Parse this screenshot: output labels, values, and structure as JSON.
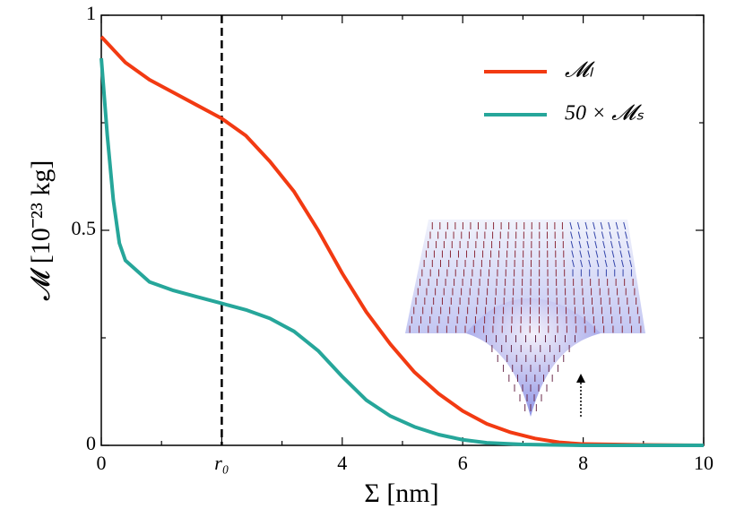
{
  "chart_data": {
    "type": "line",
    "xlabel": "Σ [nm]",
    "ylabel": "𝓜 [10⁻²³ kg]",
    "xlim": [
      0,
      10
    ],
    "ylim": [
      0,
      1
    ],
    "xticks": [
      0,
      {
        "value": 2,
        "label": "r₀"
      },
      4,
      6,
      8,
      10
    ],
    "xminorticks": [
      1,
      3,
      5,
      7,
      9
    ],
    "yticks": [
      0,
      0.5,
      1
    ],
    "yminorticks": [
      0.25,
      0.75
    ],
    "vline": {
      "x": 2,
      "color": "#000",
      "style": "dashed"
    },
    "legend": "upper right",
    "series": [
      {
        "name": "𝓜ₗ",
        "color": "#f23a12",
        "x": [
          0,
          0.4,
          0.8,
          1.2,
          1.6,
          2,
          2.4,
          2.8,
          3.2,
          3.6,
          4,
          4.4,
          4.8,
          5.2,
          5.6,
          6,
          6.4,
          6.8,
          7.2,
          7.6,
          8,
          9,
          10
        ],
        "values": [
          0.95,
          0.89,
          0.85,
          0.82,
          0.79,
          0.76,
          0.72,
          0.66,
          0.59,
          0.5,
          0.4,
          0.31,
          0.235,
          0.17,
          0.12,
          0.08,
          0.05,
          0.03,
          0.016,
          0.007,
          0.003,
          0.001,
          0
        ]
      },
      {
        "name": "50 × 𝓜ₛ",
        "color": "#26a69a",
        "x": [
          0,
          0.1,
          0.2,
          0.3,
          0.4,
          0.8,
          1.2,
          1.6,
          2,
          2.4,
          2.8,
          3.2,
          3.6,
          4,
          4.4,
          4.8,
          5.2,
          5.6,
          6,
          6.4,
          7,
          8,
          10
        ],
        "values": [
          0.9,
          0.72,
          0.57,
          0.47,
          0.43,
          0.38,
          0.36,
          0.345,
          0.33,
          0.315,
          0.295,
          0.265,
          0.22,
          0.16,
          0.105,
          0.068,
          0.043,
          0.025,
          0.013,
          0.006,
          0.002,
          0,
          0
        ]
      }
    ]
  }
}
